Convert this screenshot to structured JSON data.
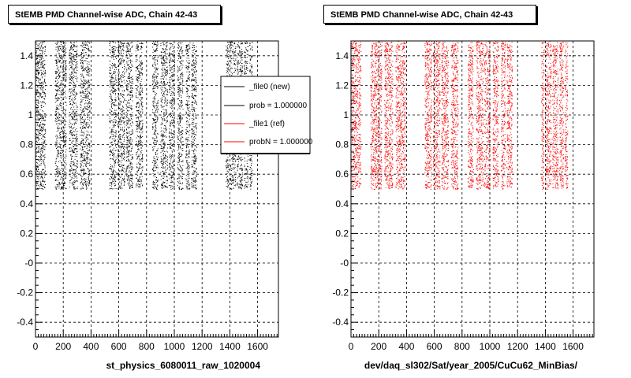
{
  "panels": {
    "left": {
      "title": "StEMB PMD Channel-wise ADC, Chain 42-43",
      "xlabel": "st_physics_6080011_raw_1020004"
    },
    "right": {
      "title": "StEMB PMD Channel-wise ADC, Chain 42-43",
      "xlabel": "dev/daq_sl302/Sat/year_2005/CuCu62_MinBias/"
    }
  },
  "legend": {
    "entries": [
      {
        "label": "_file0 (new)",
        "color": "#000000"
      },
      {
        "label": "prob = 1.000000",
        "color": "#000000"
      },
      {
        "label": "_file1 (ref)",
        "color": "#ff0000"
      },
      {
        "label": "probN = 1.000000",
        "color": "#ff0000"
      }
    ]
  },
  "footnote": "",
  "chart_data": [
    {
      "type": "scatter",
      "title": "StEMB PMD Channel-wise ADC, Chain 42-43",
      "xlabel": "st_physics_6080011_raw_1020004",
      "ylabel": "",
      "xlim": [
        0,
        1750
      ],
      "ylim": [
        -0.5,
        1.5
      ],
      "x_ticks": [
        "0",
        "200",
        "400",
        "600",
        "800",
        "1000",
        "1200",
        "1400",
        "1600"
      ],
      "y_ticks": [
        "-0.4",
        "-0.2",
        "-0",
        "0.2",
        "0.4",
        "0.6",
        "0.8",
        "1",
        "1.2",
        "1.4"
      ],
      "grid": true,
      "legend_position": "top-right",
      "series": [
        {
          "name": "_file0 (new)",
          "color": "#000000",
          "y_range": [
            0.5,
            1.5
          ],
          "x_bands": [
            [
              0,
              70
            ],
            [
              140,
              220
            ],
            [
              240,
              300
            ],
            [
              320,
              390
            ],
            [
              530,
              580
            ],
            [
              590,
              640
            ],
            [
              650,
              700
            ],
            [
              720,
              770
            ],
            [
              840,
              880
            ],
            [
              900,
              950
            ],
            [
              960,
              1000
            ],
            [
              1020,
              1060
            ],
            [
              1080,
              1110
            ],
            [
              1120,
              1160
            ],
            [
              1370,
              1390
            ],
            [
              1400,
              1440
            ],
            [
              1450,
              1490
            ],
            [
              1500,
              1530
            ],
            [
              1540,
              1560
            ]
          ]
        }
      ]
    },
    {
      "type": "scatter",
      "title": "StEMB PMD Channel-wise ADC, Chain 42-43",
      "xlabel": "dev/daq_sl302/Sat/year_2005/CuCu62_MinBias/",
      "ylabel": "",
      "xlim": [
        0,
        1750
      ],
      "ylim": [
        -0.5,
        1.5
      ],
      "x_ticks": [
        "0",
        "200",
        "400",
        "600",
        "800",
        "1000",
        "1200",
        "1400",
        "1600"
      ],
      "y_ticks": [
        "-0.4",
        "-0.2",
        "-0",
        "0.2",
        "0.4",
        "0.6",
        "0.8",
        "1",
        "1.2",
        "1.4"
      ],
      "grid": true,
      "series": [
        {
          "name": "_file1 (ref)",
          "color": "#ff0000",
          "y_range": [
            0.5,
            1.5
          ],
          "x_bands": [
            [
              0,
              70
            ],
            [
              140,
              220
            ],
            [
              240,
              300
            ],
            [
              320,
              390
            ],
            [
              530,
              580
            ],
            [
              590,
              640
            ],
            [
              650,
              700
            ],
            [
              720,
              770
            ],
            [
              840,
              880
            ],
            [
              900,
              950
            ],
            [
              960,
              1000
            ],
            [
              1020,
              1060
            ],
            [
              1080,
              1110
            ],
            [
              1120,
              1160
            ],
            [
              1370,
              1390
            ],
            [
              1400,
              1440
            ],
            [
              1450,
              1490
            ],
            [
              1500,
              1530
            ],
            [
              1540,
              1560
            ]
          ]
        }
      ]
    }
  ]
}
